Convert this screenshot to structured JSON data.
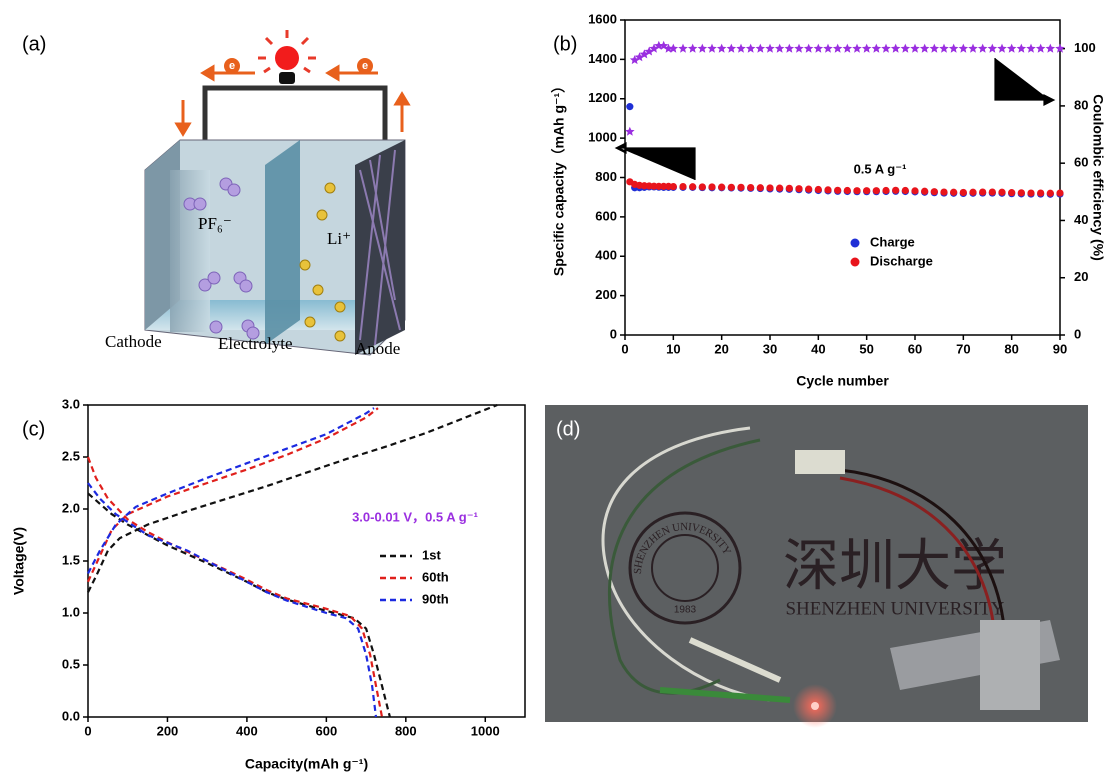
{
  "diagram": {
    "label": "(a)",
    "electron": "e",
    "anion": "PF₆⁻",
    "cation": "Li⁺",
    "cathode": "Cathode",
    "electrolyte": "Electrolyte",
    "anode": "Anode"
  },
  "photo": {
    "label": "(d)",
    "logo_cn": "深圳大学",
    "logo_en": "SHENZHEN UNIVERSITY",
    "seal_text": "SHENZHEN UNIVERSITY",
    "seal_year": "1983"
  },
  "chart_data": [
    {
      "type": "scatter",
      "label": "(b)",
      "xlabel": "Cycle number",
      "ylabel": "Specific capacity（mAh g⁻¹）",
      "y2label": "Coulombic efficiency (%)",
      "annotation": "0.5 A g⁻¹",
      "xlim": [
        0,
        90
      ],
      "xticks": [
        0,
        10,
        20,
        30,
        40,
        50,
        60,
        70,
        80,
        90
      ],
      "ylim": [
        0,
        1600
      ],
      "yticks": [
        0,
        200,
        400,
        600,
        800,
        1000,
        1200,
        1400,
        1600
      ],
      "y2lim": [
        0,
        110
      ],
      "y2ticks": [
        0,
        20,
        40,
        60,
        80,
        100
      ],
      "x": [
        1,
        2,
        3,
        4,
        5,
        6,
        7,
        8,
        9,
        10,
        12,
        14,
        16,
        18,
        20,
        22,
        24,
        26,
        28,
        30,
        32,
        34,
        36,
        38,
        40,
        42,
        44,
        46,
        48,
        50,
        52,
        54,
        56,
        58,
        60,
        62,
        64,
        66,
        68,
        70,
        72,
        74,
        76,
        78,
        80,
        82,
        84,
        86,
        88,
        90
      ],
      "series": [
        {
          "name": "Charge",
          "color": "#1f2fd6",
          "marker": "circle",
          "values": [
            1160,
            748,
            748,
            750,
            752,
            752,
            751,
            750,
            750,
            750,
            750,
            750,
            749,
            748,
            748,
            747,
            746,
            745,
            744,
            742,
            741,
            740,
            738,
            736,
            734,
            732,
            730,
            729,
            728,
            728,
            728,
            729,
            730,
            729,
            727,
            725,
            723,
            721,
            720,
            719,
            720,
            721,
            721,
            720,
            718,
            717,
            716,
            716,
            715,
            716
          ]
        },
        {
          "name": "Discharge",
          "color": "#e8141c",
          "marker": "circle",
          "values": [
            778,
            765,
            760,
            758,
            757,
            756,
            755,
            755,
            755,
            754,
            754,
            753,
            752,
            752,
            751,
            750,
            750,
            749,
            748,
            747,
            746,
            745,
            743,
            741,
            739,
            737,
            735,
            734,
            733,
            733,
            733,
            734,
            735,
            734,
            732,
            730,
            728,
            726,
            725,
            724,
            725,
            726,
            726,
            725,
            723,
            722,
            721,
            721,
            720,
            721
          ]
        },
        {
          "color": "#9a2fe0",
          "marker": "star",
          "axis": "y2",
          "values": [
            71,
            96,
            97,
            98,
            99,
            100,
            101,
            101,
            100,
            100,
            100,
            100,
            100,
            100,
            100,
            100,
            100,
            100,
            100,
            100,
            100,
            100,
            100,
            100,
            100,
            100,
            100,
            100,
            100,
            100,
            100,
            100,
            100,
            100,
            100,
            100,
            100,
            100,
            100,
            100,
            100,
            100,
            100,
            100,
            100,
            100,
            100,
            100,
            100,
            100
          ]
        }
      ]
    },
    {
      "type": "line",
      "label": "(c)",
      "xlabel": "Capacity(mAh g⁻¹)",
      "ylabel": "Voltage(V)",
      "annotation": "3.0-0.01 V，0.5 A g⁻¹",
      "xlim": [
        0,
        1100
      ],
      "xticks": [
        0,
        200,
        400,
        600,
        800,
        1000
      ],
      "ylim": [
        0,
        3
      ],
      "yticks": [
        {
          "value": 0,
          "label": "0.0"
        },
        0.5,
        {
          "value": 1,
          "label": "1.0"
        },
        1.5,
        {
          "value": 2,
          "label": "2.0"
        },
        2.5,
        {
          "value": 3,
          "label": "3.0"
        }
      ],
      "series": [
        {
          "name": "1st",
          "color": "#111111",
          "dash": true,
          "x": [
            0,
            30,
            60,
            100,
            150,
            200,
            300,
            400,
            450,
            500,
            600,
            670,
            700,
            720,
            740,
            760,
            null,
            0,
            20,
            50,
            80,
            150,
            250,
            350,
            450,
            550,
            650,
            750,
            850,
            950,
            1030
          ],
          "values": [
            2.15,
            2.05,
            1.95,
            1.85,
            1.75,
            1.65,
            1.48,
            1.3,
            1.2,
            1.13,
            1.02,
            0.95,
            0.85,
            0.6,
            0.3,
            0,
            null,
            1.2,
            1.35,
            1.6,
            1.72,
            1.85,
            1.98,
            2.1,
            2.22,
            2.35,
            2.48,
            2.6,
            2.73,
            2.88,
            3
          ]
        },
        {
          "name": "60th",
          "color": "#e0201c",
          "dash": true,
          "x": [
            0,
            20,
            50,
            100,
            150,
            200,
            300,
            400,
            450,
            500,
            600,
            660,
            690,
            710,
            725,
            740,
            null,
            0,
            30,
            60,
            100,
            200,
            300,
            400,
            500,
            600,
            700,
            730
          ],
          "values": [
            2.5,
            2.3,
            2.1,
            1.9,
            1.78,
            1.68,
            1.5,
            1.32,
            1.22,
            1.14,
            1.04,
            0.97,
            0.85,
            0.6,
            0.3,
            0,
            null,
            1.3,
            1.55,
            1.8,
            1.95,
            2.12,
            2.25,
            2.38,
            2.52,
            2.68,
            2.88,
            2.97
          ]
        },
        {
          "name": "90th",
          "color": "#1c2ae0",
          "dash": true,
          "x": [
            0,
            30,
            70,
            150,
            250,
            300,
            400,
            450,
            500,
            600,
            650,
            680,
            700,
            715,
            725,
            null,
            0,
            30,
            70,
            120,
            200,
            300,
            400,
            500,
            600,
            700,
            720
          ],
          "values": [
            2.25,
            2.1,
            1.95,
            1.75,
            1.6,
            1.5,
            1.3,
            1.2,
            1.12,
            1,
            0.95,
            0.85,
            0.6,
            0.3,
            0,
            null,
            1.38,
            1.6,
            1.85,
            2.02,
            2.15,
            2.3,
            2.44,
            2.58,
            2.72,
            2.92,
            2.97
          ]
        }
      ]
    }
  ]
}
